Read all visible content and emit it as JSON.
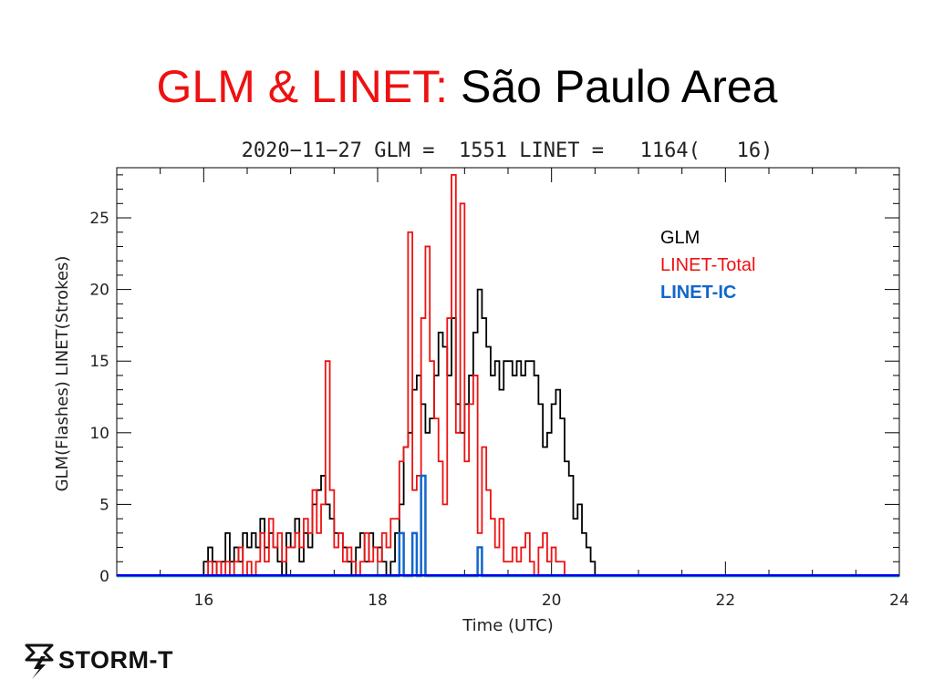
{
  "slide": {
    "title_accent": "GLM & LINET:",
    "title_rest": "São Paulo Area"
  },
  "logo": {
    "text": "STORM-T",
    "icon": "storm-cloud-lightning-icon"
  },
  "colors": {
    "glm": "#000000",
    "linet_total": "#ee1111",
    "linet_ic": "#1166cc",
    "ic_line": "#0000ee"
  },
  "chart_data": {
    "type": "line",
    "title": "2020−11−27 GLM =  1551 LINET =   1164(   16)",
    "xlabel": "Time (UTC)",
    "ylabel": "GLM(Flashes) LINET(Strokes)",
    "xlim": [
      15,
      24
    ],
    "ylim": [
      0,
      28.5
    ],
    "x_ticks": [
      16,
      18,
      20,
      22,
      24
    ],
    "y_ticks": [
      0,
      5,
      10,
      15,
      20,
      25
    ],
    "grid": false,
    "legend": "top-right",
    "x_start": 15,
    "x_step": 0.05,
    "series": [
      {
        "name": "GLM",
        "key": "glm",
        "values": [
          0,
          0,
          0,
          0,
          0,
          0,
          0,
          0,
          0,
          0,
          0,
          0,
          0,
          0,
          0,
          0,
          0,
          0,
          0,
          0,
          1,
          2,
          1,
          0,
          1,
          3,
          1,
          2,
          1,
          3,
          2,
          3,
          2,
          4,
          2,
          3,
          2,
          1,
          0,
          3,
          2,
          4,
          1,
          3,
          2,
          5,
          6,
          7,
          5,
          4,
          3,
          3,
          2,
          1,
          0,
          2,
          3,
          1,
          3,
          2,
          2,
          1,
          0,
          1,
          3,
          5,
          9,
          10,
          13,
          14,
          12,
          10,
          11,
          14,
          17,
          16,
          14,
          18,
          12,
          10,
          12,
          14,
          17,
          20,
          18,
          16,
          14,
          15,
          13,
          15,
          15,
          14,
          15,
          14,
          15,
          15,
          14,
          12,
          9,
          10,
          12,
          13,
          11,
          8,
          7,
          4,
          5,
          3,
          2,
          1,
          0,
          0,
          0,
          0,
          0,
          0,
          0,
          0,
          0,
          0,
          0,
          0,
          0,
          0,
          0,
          0,
          0,
          0,
          0,
          0,
          0,
          0,
          0,
          0,
          0,
          0,
          0,
          0,
          0,
          0,
          0,
          0,
          0,
          0,
          0,
          0,
          0,
          0,
          0,
          0,
          0,
          0,
          0,
          0,
          0,
          0,
          0,
          0,
          0,
          0,
          0,
          0,
          0,
          0,
          0,
          0,
          0,
          0,
          0,
          0,
          0,
          0,
          0,
          0,
          0,
          0,
          0,
          0,
          0,
          0
        ]
      },
      {
        "name": "LINET-Total",
        "key": "linet_total",
        "values": [
          0,
          0,
          0,
          0,
          0,
          0,
          0,
          0,
          0,
          0,
          0,
          0,
          0,
          0,
          0,
          0,
          0,
          0,
          0,
          0,
          0,
          1,
          0,
          1,
          0,
          1,
          0,
          1,
          2,
          0,
          1,
          0,
          1,
          3,
          1,
          4,
          2,
          3,
          1,
          2,
          2,
          3,
          2,
          4,
          3,
          6,
          3,
          5,
          15,
          6,
          2,
          3,
          1,
          2,
          1,
          0,
          1,
          3,
          1,
          2,
          1,
          3,
          2,
          4,
          4,
          8,
          9,
          24,
          6,
          7,
          18,
          23,
          15,
          11,
          8,
          5,
          18,
          28,
          10,
          26,
          8,
          12,
          14,
          3,
          9,
          6,
          4,
          2,
          4,
          1,
          1,
          2,
          1,
          2,
          3,
          1,
          0,
          2,
          3,
          1,
          2,
          1,
          1,
          0,
          0,
          0,
          0,
          0,
          0,
          0,
          0,
          0,
          0,
          0,
          0,
          0,
          0,
          0,
          0,
          0,
          0,
          0,
          0,
          0,
          0,
          0,
          0,
          0,
          0,
          0,
          0,
          0,
          0,
          0,
          0,
          0,
          0,
          0,
          0,
          0,
          0,
          0,
          0,
          0,
          0,
          0,
          0,
          0,
          0,
          0,
          0,
          0,
          0,
          0,
          0,
          0,
          0,
          0,
          0,
          0,
          0,
          0,
          0,
          0,
          0,
          0,
          0,
          0,
          0,
          0,
          0,
          0,
          0,
          0,
          0,
          0,
          0,
          0,
          0,
          0
        ]
      },
      {
        "name": "LINET-IC",
        "key": "linet_ic",
        "values": [
          0,
          0,
          0,
          0,
          0,
          0,
          0,
          0,
          0,
          0,
          0,
          0,
          0,
          0,
          0,
          0,
          0,
          0,
          0,
          0,
          0,
          0,
          0,
          0,
          0,
          0,
          0,
          0,
          0,
          0,
          0,
          0,
          0,
          0,
          0,
          0,
          0,
          0,
          0,
          0,
          0,
          0,
          0,
          0,
          0,
          0,
          0,
          0,
          0,
          0,
          0,
          0,
          0,
          0,
          0,
          0,
          0,
          0,
          0,
          0,
          0,
          0,
          0,
          0,
          0,
          3,
          0,
          0,
          3,
          0,
          7,
          0,
          0,
          0,
          0,
          0,
          0,
          0,
          0,
          0,
          0,
          0,
          0,
          2,
          0,
          0,
          0,
          0,
          0,
          0,
          0,
          0,
          0,
          0,
          0,
          0,
          0,
          0,
          0,
          0,
          0,
          0,
          0,
          0,
          0,
          0,
          0,
          0,
          0,
          0,
          0,
          0,
          0,
          0,
          0,
          0,
          0,
          0,
          0,
          0,
          0,
          0,
          0,
          0,
          0,
          0,
          0,
          0,
          0,
          0,
          0,
          0,
          0,
          0,
          0,
          0,
          0,
          0,
          0,
          0,
          0,
          0,
          0,
          0,
          0,
          0,
          0,
          0,
          0,
          0,
          0,
          0,
          0,
          0,
          0,
          0,
          0,
          0,
          0,
          0,
          0,
          0,
          0,
          0,
          0,
          0,
          0,
          0,
          0,
          0,
          0,
          0,
          0,
          0,
          0,
          0,
          0,
          0,
          0,
          0
        ]
      }
    ]
  }
}
